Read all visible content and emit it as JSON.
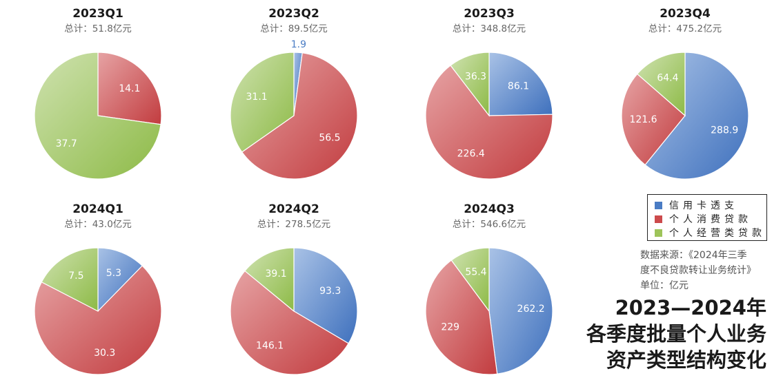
{
  "colors": {
    "card": "#4a7cc4",
    "consumer": "#cc4a4c",
    "business": "#9ec45a"
  },
  "chart_data": [
    {
      "type": "pie",
      "title": "2023Q1",
      "subtitle": "总计：51.8亿元",
      "slices": [
        {
          "category": "个人消费贷款",
          "value": 14.1,
          "label": "14.1"
        },
        {
          "category": "个人经营类贷款",
          "value": 37.7,
          "label": "37.7"
        }
      ]
    },
    {
      "type": "pie",
      "title": "2023Q2",
      "subtitle": "总计：89.5亿元",
      "slices": [
        {
          "category": "信用卡透支",
          "value": 1.9,
          "label": "1.9"
        },
        {
          "category": "个人消费贷款",
          "value": 56.5,
          "label": "56.5"
        },
        {
          "category": "个人经营类贷款",
          "value": 31.1,
          "label": "31.1"
        }
      ]
    },
    {
      "type": "pie",
      "title": "2023Q3",
      "subtitle": "总计：348.8亿元",
      "slices": [
        {
          "category": "信用卡透支",
          "value": 86.1,
          "label": "86.1"
        },
        {
          "category": "个人消费贷款",
          "value": 226.4,
          "label": "226.4"
        },
        {
          "category": "个人经营类贷款",
          "value": 36.3,
          "label": "36.3"
        }
      ]
    },
    {
      "type": "pie",
      "title": "2023Q4",
      "subtitle": "总计：475.2亿元",
      "slices": [
        {
          "category": "信用卡透支",
          "value": 288.9,
          "label": "288.9"
        },
        {
          "category": "个人消费贷款",
          "value": 121.6,
          "label": "121.6"
        },
        {
          "category": "个人经营类贷款",
          "value": 64.4,
          "label": "64.4"
        }
      ]
    },
    {
      "type": "pie",
      "title": "2024Q1",
      "subtitle": "总计：43.0亿元",
      "slices": [
        {
          "category": "信用卡透支",
          "value": 5.3,
          "label": "5.3"
        },
        {
          "category": "个人消费贷款",
          "value": 30.3,
          "label": "30.3"
        },
        {
          "category": "个人经营类贷款",
          "value": 7.5,
          "label": "7.5"
        }
      ]
    },
    {
      "type": "pie",
      "title": "2024Q2",
      "subtitle": "总计：278.5亿元",
      "slices": [
        {
          "category": "信用卡透支",
          "value": 93.3,
          "label": "93.3"
        },
        {
          "category": "个人消费贷款",
          "value": 146.1,
          "label": "146.1"
        },
        {
          "category": "个人经营类贷款",
          "value": 39.1,
          "label": "39.1"
        }
      ]
    },
    {
      "type": "pie",
      "title": "2024Q3",
      "subtitle": "总计：546.6亿元",
      "slices": [
        {
          "category": "信用卡透支",
          "value": 262.2,
          "label": "262.2"
        },
        {
          "category": "个人消费贷款",
          "value": 229,
          "label": "229"
        },
        {
          "category": "个人经营类贷款",
          "value": 55.4,
          "label": "55.4"
        }
      ]
    }
  ],
  "legend": {
    "items": [
      "信用卡透支",
      "个人消费贷款",
      "个人经营类贷款"
    ]
  },
  "source": {
    "line1": "数据来源：《2024年三季",
    "line2": "度不良贷款转让业务统计》",
    "unit": "单位：亿元"
  },
  "main_title": {
    "line1": "2023—2024年",
    "line2": "各季度批量个人业务",
    "line3": "资产类型结构变化"
  }
}
